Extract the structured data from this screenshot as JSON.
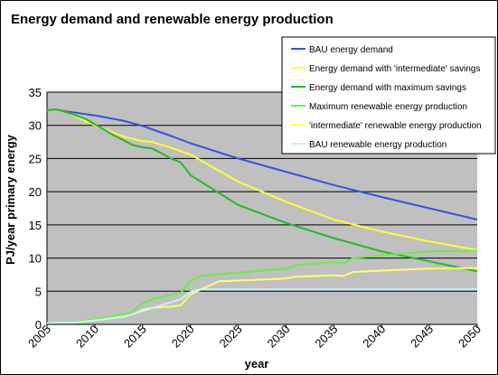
{
  "chart_data": {
    "type": "line",
    "title": "Energy demand and renewable energy production",
    "xlabel": "year",
    "ylabel": "PJ/year primary energy",
    "xlim": [
      2005,
      2050
    ],
    "ylim": [
      0,
      35
    ],
    "x_ticks": [
      2005,
      2010,
      2015,
      2020,
      2025,
      2030,
      2035,
      2040,
      2045,
      2050
    ],
    "y_ticks": [
      0,
      5,
      10,
      15,
      20,
      25,
      30,
      35
    ],
    "grid": "horizontal",
    "legend_position": "top-right",
    "plot_background": "#c0c0c0",
    "series": [
      {
        "name": "BAU energy demand",
        "color": "#2f55e0",
        "x": [
          2005,
          2006,
          2007,
          2010,
          2013,
          2015,
          2018,
          2020,
          2025,
          2030,
          2035,
          2040,
          2045,
          2050
        ],
        "values": [
          32.3,
          32.4,
          32.1,
          31.5,
          30.7,
          29.9,
          28.4,
          27.3,
          25.0,
          23.0,
          21.0,
          19.2,
          17.5,
          15.8
        ]
      },
      {
        "name": "Energy demand with 'intermediate' savings",
        "color": "#ffff33",
        "x": [
          2005,
          2006,
          2007,
          2010,
          2013,
          2015,
          2016,
          2018,
          2020,
          2025,
          2030,
          2035,
          2040,
          2045,
          2050
        ],
        "values": [
          32.3,
          32.4,
          32.0,
          30.0,
          28.3,
          27.6,
          27.5,
          26.6,
          25.6,
          21.5,
          18.5,
          15.8,
          14.0,
          12.5,
          11.2
        ]
      },
      {
        "name": "Energy demand with maximum savings",
        "color": "#22bb22",
        "x": [
          2005,
          2006,
          2007,
          2009,
          2012,
          2014,
          2015,
          2016,
          2018,
          2019,
          2020,
          2025,
          2030,
          2035,
          2040,
          2045,
          2050
        ],
        "values": [
          32.3,
          32.4,
          32.0,
          31.0,
          28.5,
          27.0,
          26.7,
          26.5,
          25.0,
          24.4,
          22.5,
          18.0,
          15.3,
          13.0,
          11.0,
          9.5,
          8.0
        ]
      },
      {
        "name": "Maximum renewable energy production",
        "color": "#66ee44",
        "x": [
          2005,
          2008,
          2010,
          2013,
          2014,
          2015,
          2016,
          2018,
          2019,
          2020,
          2021,
          2025,
          2030,
          2031,
          2035,
          2036,
          2037,
          2040,
          2045,
          2050
        ],
        "values": [
          0.2,
          0.4,
          0.8,
          1.5,
          2.0,
          3.2,
          3.8,
          4.5,
          4.8,
          6.5,
          7.3,
          7.8,
          8.4,
          8.9,
          9.4,
          9.2,
          10.0,
          10.4,
          11.0,
          11.1
        ]
      },
      {
        "name": "'intermediate' renewable energy production",
        "color": "#ffff66",
        "x": [
          2005,
          2008,
          2010,
          2013,
          2014,
          2015,
          2016,
          2018,
          2019,
          2020,
          2021,
          2023,
          2025,
          2030,
          2031,
          2035,
          2036,
          2037,
          2040,
          2045,
          2050
        ],
        "values": [
          0.2,
          0.3,
          0.6,
          1.2,
          1.5,
          2.2,
          2.5,
          2.7,
          2.9,
          4.5,
          5.2,
          6.5,
          6.6,
          6.9,
          7.2,
          7.4,
          7.3,
          7.9,
          8.1,
          8.4,
          8.5
        ]
      },
      {
        "name": "BAU renewable energy production",
        "color": "#c8f0ff",
        "x": [
          2005,
          2008,
          2010,
          2013,
          2015,
          2017,
          2019,
          2020,
          2021,
          2025,
          2030,
          2035,
          2040,
          2045,
          2050
        ],
        "values": [
          0.2,
          0.3,
          0.6,
          1.1,
          2.0,
          2.9,
          3.8,
          4.9,
          5.3,
          5.3,
          5.3,
          5.3,
          5.3,
          5.3,
          5.3
        ]
      }
    ]
  }
}
